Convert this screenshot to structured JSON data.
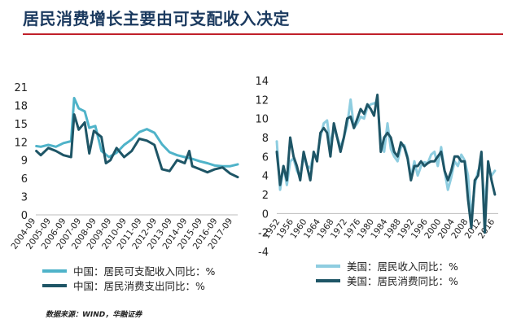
{
  "title": "居民消费增长主要由可支配收入决定",
  "source": "数据来源：WIND，华融证券",
  "colors": {
    "light": "#4fb3c9",
    "dark": "#1e5566",
    "us_light": "#8ecde0",
    "rule": "#c0202a",
    "title": "#1b3a5f"
  },
  "chart_data": [
    {
      "type": "line",
      "ylim": [
        0,
        21
      ],
      "yticks": [
        0,
        3,
        6,
        9,
        12,
        15,
        18,
        21
      ],
      "x_tick_labels": [
        "2004-09",
        "2005-09",
        "2006-09",
        "2007-09",
        "2008-09",
        "2009-09",
        "2010-09",
        "2011-09",
        "2012-09",
        "2013-09",
        "2014-09",
        "2015-09",
        "2016-09",
        "2017-09"
      ],
      "x_start": 2004.67,
      "x_end": 2018.0,
      "series": [
        {
          "name": "中国：居民可支配收入同比：%",
          "color": "#4fb3c9",
          "x": [
            2004.7,
            2005.0,
            2005.5,
            2006.0,
            2006.5,
            2007.0,
            2007.2,
            2007.5,
            2007.9,
            2008.2,
            2008.6,
            2009.0,
            2009.5,
            2010.0,
            2010.5,
            2011.0,
            2011.5,
            2012.0,
            2012.5,
            2013.0,
            2013.5,
            2014.0,
            2014.5,
            2015.0,
            2015.5,
            2016.0,
            2016.5,
            2017.0,
            2017.5,
            2018.0
          ],
          "y": [
            11.3,
            11.2,
            11.5,
            11.2,
            11.8,
            12.1,
            19.2,
            17.5,
            17.0,
            14.3,
            14.6,
            10.5,
            9.5,
            10.2,
            11.5,
            12.4,
            13.6,
            14.1,
            13.5,
            11.6,
            10.3,
            9.8,
            9.5,
            9.2,
            8.8,
            8.5,
            8.1,
            8.0,
            8.0,
            8.3
          ]
        },
        {
          "name": "中国：居民消费支出同比：%",
          "color": "#1e5566",
          "x": [
            2004.7,
            2005.0,
            2005.5,
            2006.0,
            2006.5,
            2007.0,
            2007.2,
            2007.5,
            2007.9,
            2008.2,
            2008.5,
            2009.0,
            2009.3,
            2009.6,
            2010.0,
            2010.5,
            2011.0,
            2011.5,
            2012.0,
            2012.5,
            2013.0,
            2013.5,
            2014.0,
            2014.5,
            2014.8,
            2015.0,
            2015.5,
            2016.0,
            2016.5,
            2017.0,
            2017.5,
            2018.0
          ],
          "y": [
            10.5,
            9.8,
            11.0,
            10.5,
            9.8,
            9.5,
            16.5,
            14.0,
            15.2,
            10.1,
            13.8,
            12.8,
            8.5,
            9.0,
            11.0,
            9.5,
            10.5,
            12.5,
            12.2,
            11.5,
            7.5,
            7.2,
            9.0,
            8.5,
            10.5,
            8.0,
            7.5,
            7.0,
            7.5,
            7.8,
            6.8,
            6.2
          ]
        }
      ]
    },
    {
      "type": "line",
      "ylim": [
        -4,
        14
      ],
      "yticks": [
        -4,
        -2,
        0,
        2,
        4,
        6,
        8,
        10,
        12,
        14
      ],
      "x_tick_labels": [
        "1952",
        "1956",
        "1960",
        "1964",
        "1968",
        "1972",
        "1976",
        "1980",
        "1984",
        "1988",
        "1992",
        "1996",
        "2000",
        "2004",
        "2008",
        "2012",
        "2016"
      ],
      "x_start": 1951,
      "x_end": 2017,
      "series": [
        {
          "name": "美国：居民收入同比：%",
          "color": "#8ecde0",
          "x": [
            1951,
            1952,
            1953,
            1954,
            1955,
            1956,
            1957,
            1958,
            1959,
            1960,
            1961,
            1962,
            1963,
            1964,
            1965,
            1966,
            1967,
            1968,
            1969,
            1970,
            1971,
            1972,
            1973,
            1974,
            1975,
            1976,
            1977,
            1978,
            1979,
            1980,
            1981,
            1982,
            1983,
            1984,
            1985,
            1986,
            1987,
            1988,
            1989,
            1990,
            1991,
            1992,
            1993,
            1994,
            1995,
            1996,
            1997,
            1998,
            1999,
            2000,
            2001,
            2002,
            2003,
            2004,
            2005,
            2006,
            2007,
            2008,
            2009,
            2010,
            2011,
            2012,
            2013,
            2014,
            2015,
            2016
          ],
          "y": [
            7.6,
            2.5,
            5.0,
            3.0,
            5.5,
            5.8,
            4.5,
            3.8,
            6.0,
            5.0,
            4.8,
            6.2,
            6.0,
            8.0,
            9.5,
            9.8,
            7.2,
            9.0,
            8.0,
            7.0,
            8.0,
            9.3,
            12.0,
            9.0,
            9.5,
            10.2,
            10.0,
            11.2,
            11.5,
            11.6,
            11.8,
            7.5,
            6.5,
            9.5,
            6.8,
            6.0,
            5.5,
            7.0,
            7.2,
            6.0,
            3.8,
            5.5,
            4.0,
            5.0,
            5.4,
            5.3,
            6.2,
            6.5,
            5.0,
            7.0,
            4.5,
            2.5,
            3.8,
            5.5,
            5.0,
            6.2,
            5.6,
            4.0,
            -0.5,
            3.0,
            4.5,
            5.0,
            1.0,
            4.5,
            4.0,
            4.5
          ]
        },
        {
          "name": "美国：居民消费同比：%",
          "color": "#1e5566",
          "x": [
            1951,
            1952,
            1953,
            1954,
            1955,
            1956,
            1957,
            1958,
            1959,
            1960,
            1961,
            1962,
            1963,
            1964,
            1965,
            1966,
            1967,
            1968,
            1969,
            1970,
            1971,
            1972,
            1973,
            1974,
            1975,
            1976,
            1977,
            1978,
            1979,
            1980,
            1981,
            1982,
            1983,
            1984,
            1985,
            1986,
            1987,
            1988,
            1989,
            1990,
            1991,
            1992,
            1993,
            1994,
            1995,
            1996,
            1997,
            1998,
            1999,
            2000,
            2001,
            2002,
            2003,
            2004,
            2005,
            2006,
            2007,
            2008,
            2009,
            2010,
            2011,
            2012,
            2013,
            2014,
            2015,
            2016
          ],
          "y": [
            6.5,
            3.0,
            5.0,
            3.5,
            8.0,
            6.0,
            5.0,
            3.5,
            6.5,
            5.0,
            3.5,
            6.5,
            5.5,
            8.5,
            9.0,
            8.5,
            6.0,
            9.5,
            8.0,
            6.5,
            8.0,
            10.0,
            10.2,
            9.0,
            10.0,
            11.0,
            10.5,
            11.5,
            11.0,
            10.3,
            12.5,
            6.5,
            8.0,
            8.5,
            8.0,
            6.5,
            6.0,
            7.5,
            7.0,
            5.8,
            3.5,
            5.0,
            5.0,
            5.5,
            5.0,
            5.3,
            5.5,
            5.5,
            6.0,
            6.5,
            4.5,
            3.5,
            4.5,
            6.0,
            6.0,
            5.5,
            5.5,
            1.5,
            -1.5,
            3.5,
            4.0,
            6.5,
            -2.0,
            5.5,
            3.5,
            2.0
          ]
        }
      ]
    }
  ]
}
